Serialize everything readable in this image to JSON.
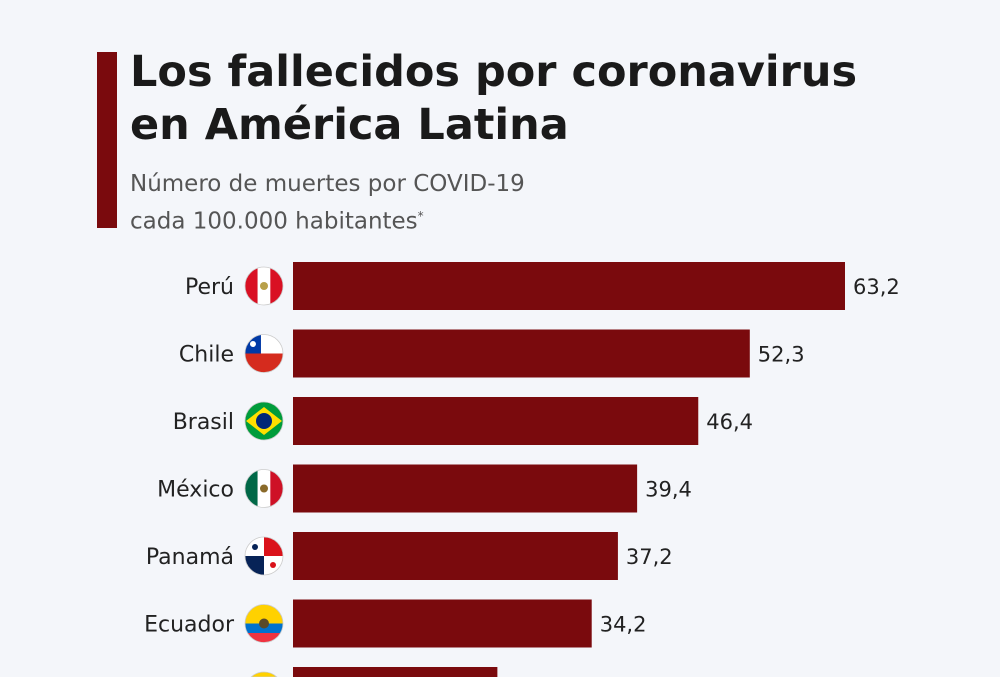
{
  "header": {
    "title_line1": "Los fallecidos por coronavirus",
    "title_line2": "en América Latina",
    "subtitle_line1": "Número de muertes por COVID-19",
    "subtitle_line2": "cada 100.000 habitantes",
    "footnote_mark": "*"
  },
  "colors": {
    "bar": "#7a0a0d",
    "accent": "#7a0a0d",
    "background": "#f4f6fa"
  },
  "chart_data": {
    "type": "bar",
    "orientation": "horizontal",
    "title": "Los fallecidos por coronavirus en América Latina",
    "subtitle": "Número de muertes por COVID-19 cada 100.000 habitantes*",
    "categories": [
      "Perú",
      "Chile",
      "Brasil",
      "México",
      "Panamá",
      "Ecuador",
      ""
    ],
    "values": [
      63.2,
      52.3,
      46.4,
      39.4,
      37.2,
      34.2,
      23.4
    ],
    "labels": [
      "63,2",
      "52,3",
      "46,4",
      "39,4",
      "37,2",
      "34,2",
      ""
    ],
    "flags": [
      "peru-flag-icon",
      "chile-flag-icon",
      "brazil-flag-icon",
      "mexico-flag-icon",
      "panama-flag-icon",
      "ecuador-flag-icon",
      "yellow-flag-icon"
    ],
    "grid": false,
    "legend": "none"
  }
}
